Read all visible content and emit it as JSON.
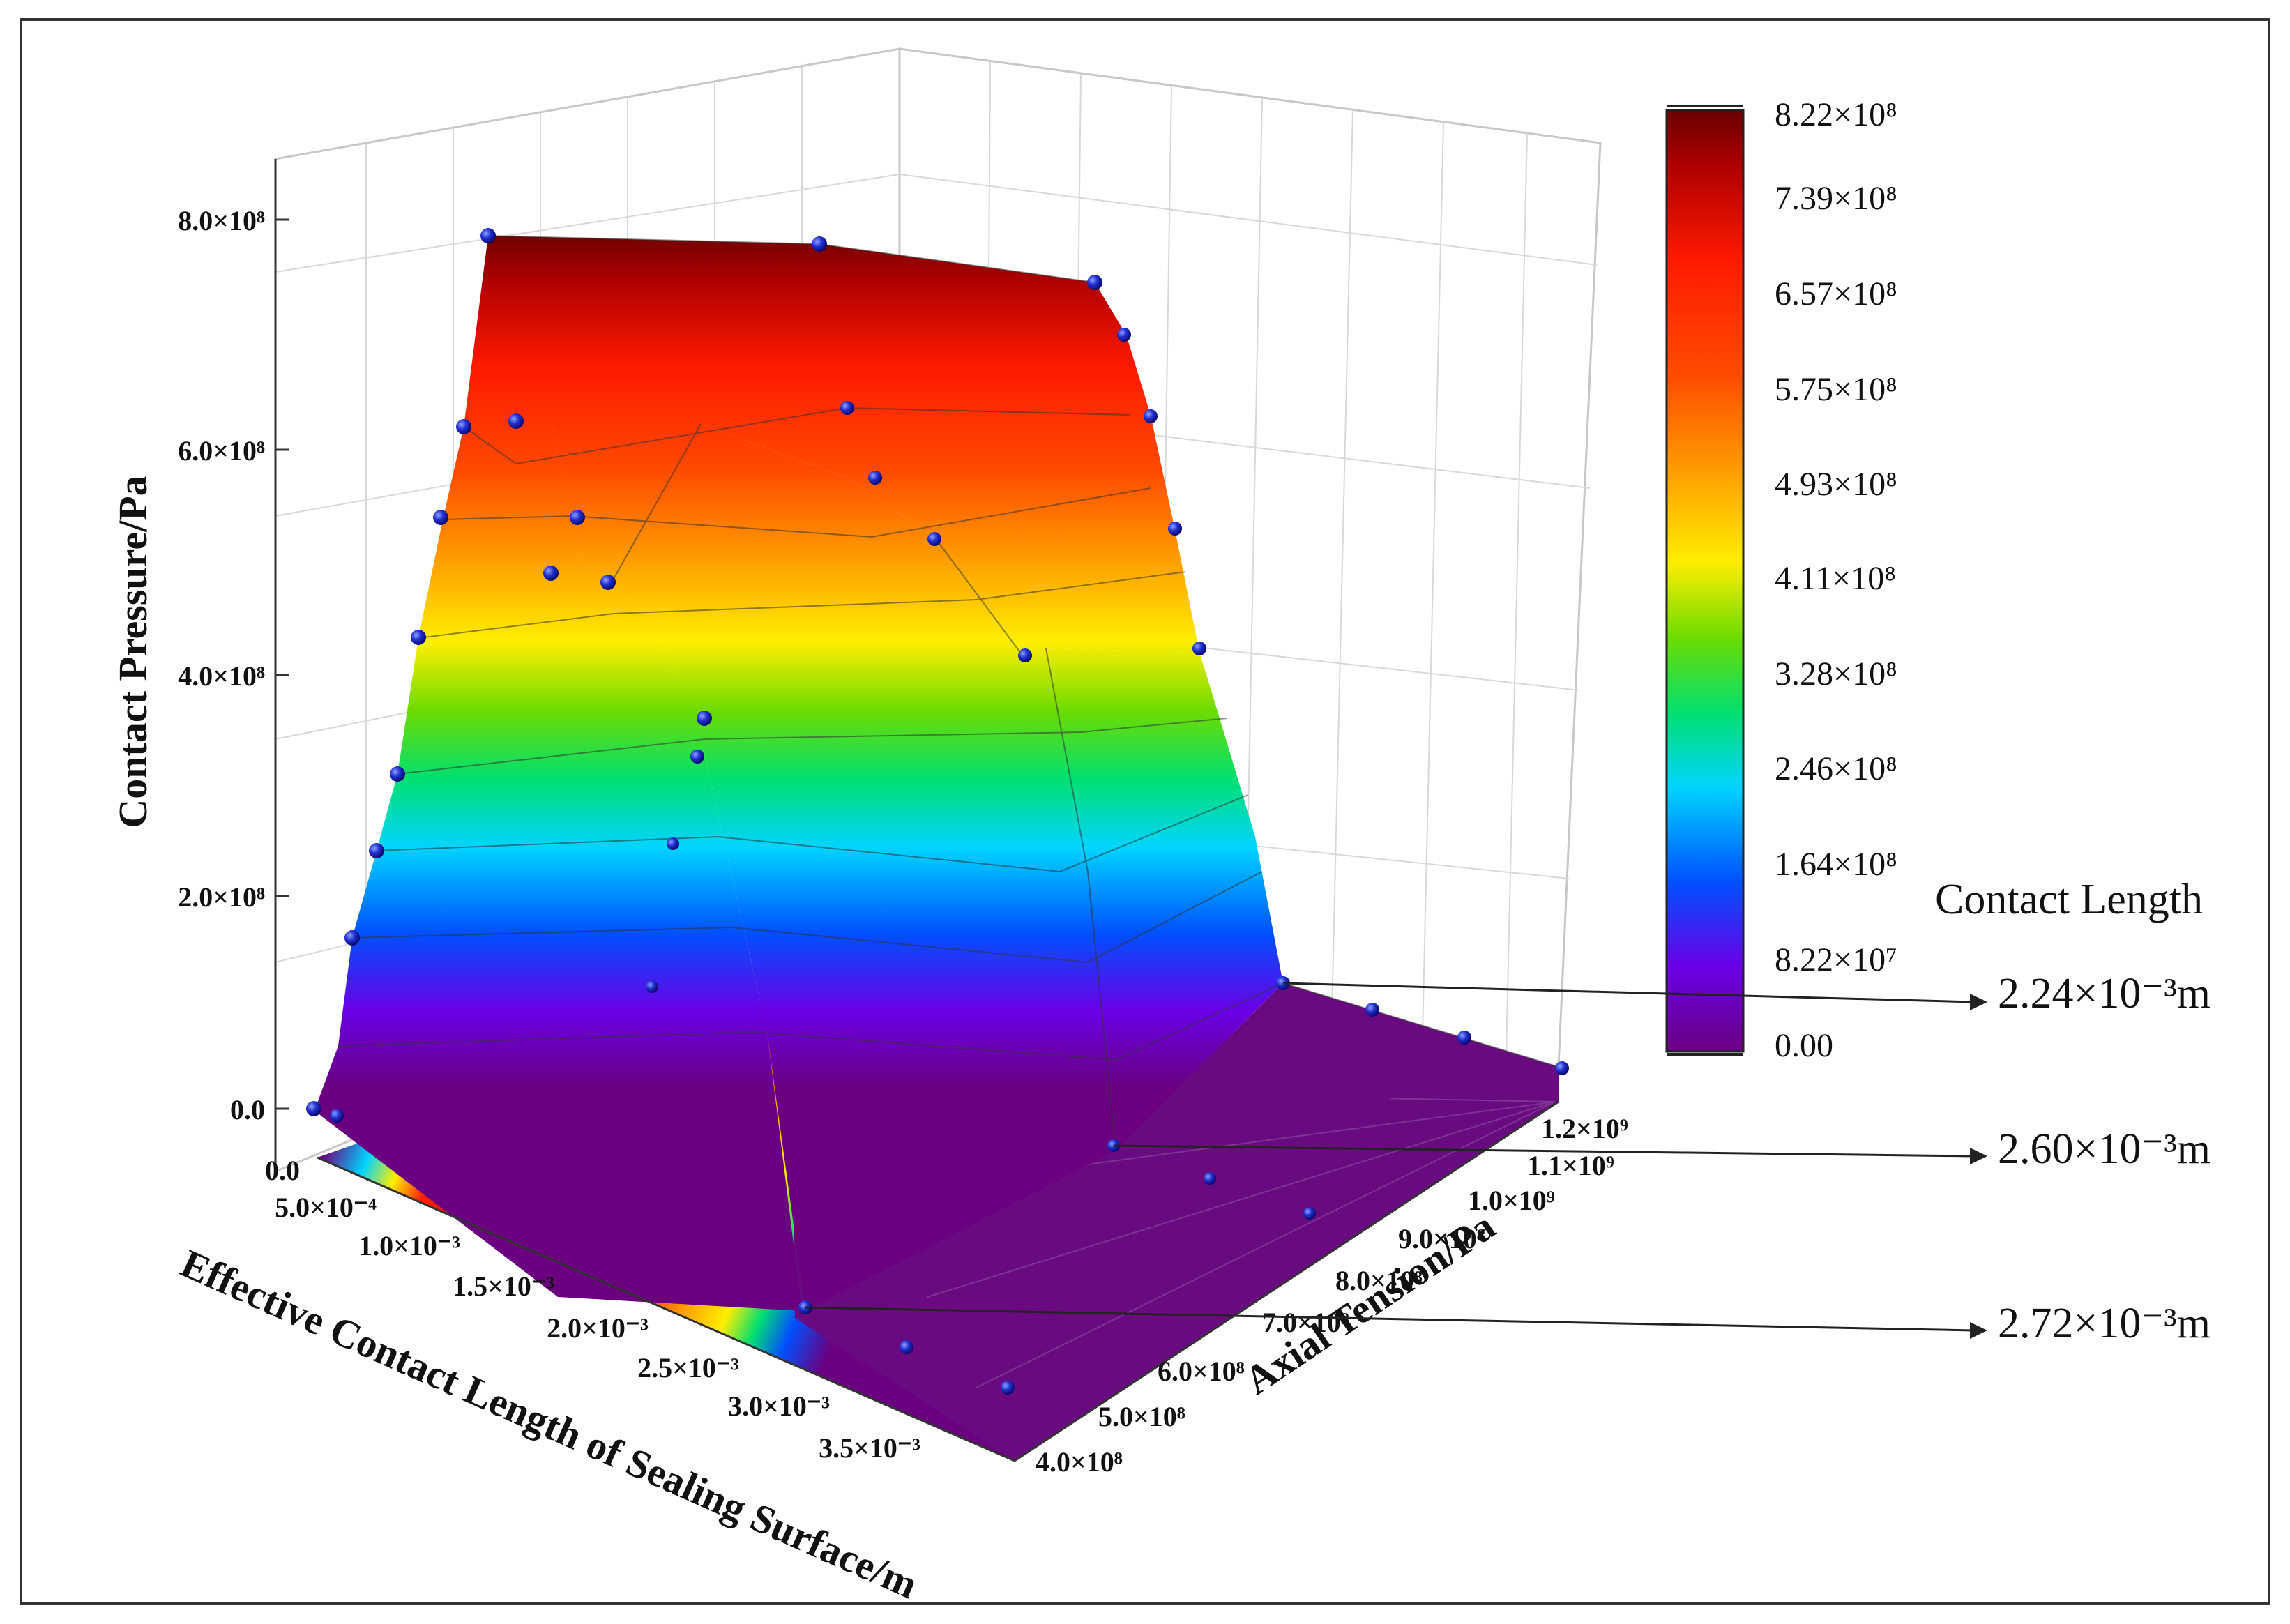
{
  "chart_data": {
    "type": "surface3d",
    "zlabel": "Contact Pressure/Pa",
    "xlabel": "Effective Contact Length of Sealing Surface/m",
    "ylabel": "Axial Tension/Pa",
    "z_ticks": [
      "0.0",
      "2.0×10⁸",
      "4.0×10⁸",
      "6.0×10⁸",
      "8.0×10⁸"
    ],
    "x_ticks": [
      "0.0",
      "5.0×10⁻⁴",
      "1.0×10⁻³",
      "1.5×10⁻³",
      "2.0×10⁻³",
      "2.5×10⁻³",
      "3.0×10⁻³",
      "3.5×10⁻³"
    ],
    "y_ticks": [
      "4.0×10⁸",
      "5.0×10⁸",
      "6.0×10⁸",
      "7.0×10⁸",
      "8.0×10⁸",
      "9.0×10⁸",
      "1.0×10⁹",
      "1.1×10⁹",
      "1.2×10⁹"
    ],
    "zlim": [
      0,
      822000000
    ],
    "colorbar": {
      "labels": [
        "8.22×10⁸",
        "7.39×10⁸",
        "6.57×10⁸",
        "5.75×10⁸",
        "4.93×10⁸",
        "4.11×10⁸",
        "3.28×10⁸",
        "2.46×10⁸",
        "1.64×10⁸",
        "8.22×10⁷",
        "0.00"
      ],
      "colors": [
        "#6a0000",
        "#b00000",
        "#ff1a00",
        "#ff4a00",
        "#ff9a00",
        "#ffee00",
        "#6ddc00",
        "#00e070",
        "#00d4ff",
        "#0050ff",
        "#6a00e6",
        "#6a0080"
      ]
    },
    "series": [
      {
        "axial_tension": 400000000,
        "contact_length_end": 0.00272,
        "points": [
          [
            0,
            0
          ],
          [
            0.00025,
            160000000
          ],
          [
            0.0005,
            235000000
          ],
          [
            0.00075,
            295000000
          ],
          [
            0.001,
            410000000
          ],
          [
            0.00125,
            510000000
          ],
          [
            0.0015,
            582000000
          ],
          [
            0.00175,
            775000000
          ],
          [
            0.00272,
            0
          ],
          [
            0.003,
            0
          ],
          [
            0.0035,
            0
          ]
        ]
      },
      {
        "axial_tension": 800000000,
        "contact_length_end": 0.0026,
        "points": [
          [
            0.0005,
            600000000
          ],
          [
            0.001,
            620000000
          ],
          [
            0.0015,
            570000000
          ],
          [
            0.002,
            520000000
          ],
          [
            0.0026,
            0
          ],
          [
            0.003,
            0
          ],
          [
            0.0035,
            0
          ]
        ]
      },
      {
        "axial_tension": 1200000000,
        "contact_length_end": 0.00224,
        "points": [
          [
            0.0005,
            720000000
          ],
          [
            0.001,
            660000000
          ],
          [
            0.0015,
            580000000
          ],
          [
            0.002,
            470000000
          ],
          [
            0.00224,
            0
          ],
          [
            0.003,
            0
          ],
          [
            0.0035,
            0
          ]
        ]
      }
    ],
    "annotations": {
      "title": "Contact Length",
      "items": [
        "2.24×10⁻³m",
        "2.60×10⁻³m",
        "2.72×10⁻³m"
      ]
    }
  }
}
